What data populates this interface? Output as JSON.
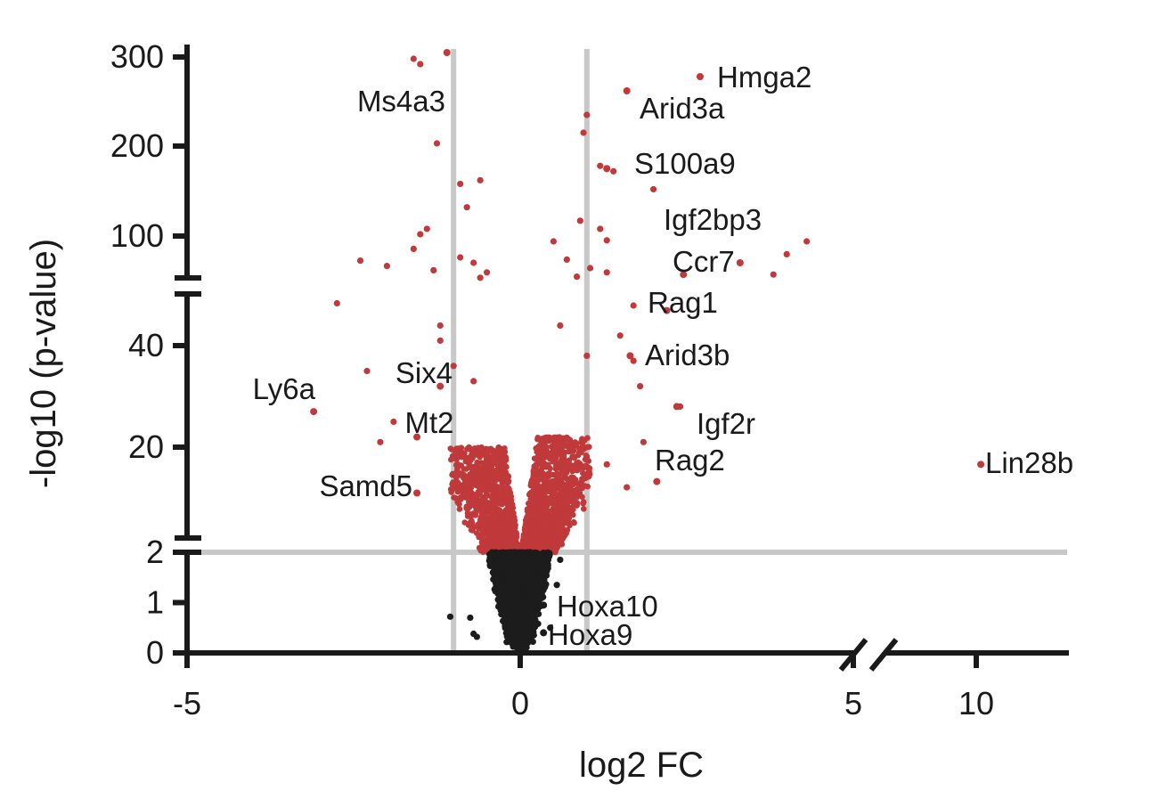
{
  "chart_data": {
    "type": "scatter",
    "xlabel": "log2 FC",
    "ylabel": "-log10 (p-value)",
    "x_ticks": [
      "-5",
      "0",
      "5",
      "10"
    ],
    "y_ticks": [
      "0",
      "1",
      "2",
      "20",
      "40",
      "100",
      "200",
      "300"
    ],
    "x_axis_broken": true,
    "y_axis_broken": true,
    "thresholds": {
      "log2fc": [
        -1,
        1
      ],
      "neg_log10_p": 2
    },
    "colors": {
      "significant": "#c0393b",
      "not_significant": "#1c1c1c",
      "threshold_line": "#c8c8c8",
      "axis": "#1a1a1a"
    },
    "labeled_genes": [
      {
        "name": "Hmga2",
        "x": 2.7,
        "y": 278
      },
      {
        "name": "Arid3a",
        "x": 1.6,
        "y": 262
      },
      {
        "name": "Ms4a3",
        "x": -1.1,
        "y": 305
      },
      {
        "name": "S100a9",
        "x": 1.3,
        "y": 175
      },
      {
        "name": "Igf2bp3",
        "x": 3.3,
        "y": 75
      },
      {
        "name": "Ccr7",
        "x": 2.45,
        "y": 64
      },
      {
        "name": "Rag1",
        "x": 2.2,
        "y": 47
      },
      {
        "name": "Arid3b",
        "x": 1.65,
        "y": 38
      },
      {
        "name": "Six4",
        "x": -1.2,
        "y": 32
      },
      {
        "name": "Ly6a",
        "x": -3.1,
        "y": 27
      },
      {
        "name": "Mt2",
        "x": -1.55,
        "y": 22
      },
      {
        "name": "Igf2r",
        "x": 2.35,
        "y": 28
      },
      {
        "name": "Rag2",
        "x": 2.05,
        "y": 14
      },
      {
        "name": "Lin28b",
        "x": 10.1,
        "y": 17
      },
      {
        "name": "Samd5",
        "x": -1.55,
        "y": 12
      },
      {
        "name": "Hoxa10",
        "x": 0.35,
        "y": 0.95
      },
      {
        "name": "Hoxa9",
        "x": 0.35,
        "y": 0.4
      }
    ],
    "scatter_clouds": [
      {
        "group": "up",
        "n": 1200,
        "x_range": [
          0.02,
          1.0
        ],
        "y_range": [
          2,
          22
        ]
      },
      {
        "group": "down",
        "n": 1100,
        "x_range": [
          -1.0,
          -0.02
        ],
        "y_range": [
          2,
          20
        ]
      },
      {
        "group": "not_significant",
        "n": 3500,
        "x_range": [
          -0.6,
          0.6
        ],
        "y_range": [
          0,
          2
        ]
      }
    ],
    "scatter_outliers": [
      {
        "x": -1.6,
        "y": 298
      },
      {
        "x": -1.5,
        "y": 292
      },
      {
        "x": -1.25,
        "y": 203
      },
      {
        "x": -0.9,
        "y": 158
      },
      {
        "x": -0.6,
        "y": 162
      },
      {
        "x": -0.8,
        "y": 132
      },
      {
        "x": -1.4,
        "y": 108
      },
      {
        "x": -1.5,
        "y": 102
      },
      {
        "x": -1.6,
        "y": 88
      },
      {
        "x": -2.4,
        "y": 77
      },
      {
        "x": -2.0,
        "y": 72
      },
      {
        "x": -1.3,
        "y": 68
      },
      {
        "x": -0.9,
        "y": 80
      },
      {
        "x": -0.7,
        "y": 75
      },
      {
        "x": -0.5,
        "y": 66
      },
      {
        "x": -0.6,
        "y": 61
      },
      {
        "x": -2.75,
        "y": 49
      },
      {
        "x": -1.2,
        "y": 44
      },
      {
        "x": -1.2,
        "y": 41
      },
      {
        "x": -2.3,
        "y": 35
      },
      {
        "x": -1.9,
        "y": 25
      },
      {
        "x": -2.1,
        "y": 21
      },
      {
        "x": -1.0,
        "y": 36
      },
      {
        "x": -0.7,
        "y": 33
      },
      {
        "x": 1.0,
        "y": 235
      },
      {
        "x": 0.95,
        "y": 215
      },
      {
        "x": 1.2,
        "y": 178
      },
      {
        "x": 1.4,
        "y": 172
      },
      {
        "x": 2.0,
        "y": 152
      },
      {
        "x": 0.9,
        "y": 117
      },
      {
        "x": 1.2,
        "y": 108
      },
      {
        "x": 1.3,
        "y": 96
      },
      {
        "x": 0.5,
        "y": 95
      },
      {
        "x": 0.7,
        "y": 78
      },
      {
        "x": 1.05,
        "y": 70
      },
      {
        "x": 1.3,
        "y": 66
      },
      {
        "x": 0.85,
        "y": 62
      },
      {
        "x": 4.3,
        "y": 95
      },
      {
        "x": 4.0,
        "y": 83
      },
      {
        "x": 3.8,
        "y": 64
      },
      {
        "x": 1.7,
        "y": 48
      },
      {
        "x": 1.5,
        "y": 42
      },
      {
        "x": 1.7,
        "y": 37
      },
      {
        "x": 1.8,
        "y": 32
      },
      {
        "x": 2.4,
        "y": 28
      },
      {
        "x": 1.85,
        "y": 21
      },
      {
        "x": 1.3,
        "y": 17
      },
      {
        "x": 1.0,
        "y": 38
      },
      {
        "x": 0.6,
        "y": 44
      },
      {
        "x": 1.6,
        "y": 13
      },
      {
        "x": -1.05,
        "y": 0.72
      },
      {
        "x": -0.7,
        "y": 0.38
      },
      {
        "x": -0.65,
        "y": 0.32
      },
      {
        "x": -0.75,
        "y": 0.7
      },
      {
        "x": 0.55,
        "y": 1.35
      },
      {
        "x": 0.6,
        "y": 1.85
      },
      {
        "x": 0.45,
        "y": 0.5
      }
    ]
  }
}
